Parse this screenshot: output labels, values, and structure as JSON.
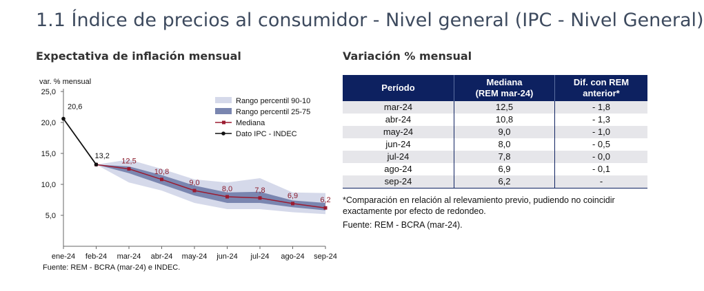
{
  "page": {
    "title": "1.1 Índice de precios al consumidor - Nivel general (IPC - Nivel General)"
  },
  "chart": {
    "title": "Expectativa de inflación mensual",
    "source": "Fuente: REM - BCRA (mar-24) e INDEC."
  },
  "chart_data": {
    "type": "line",
    "title": "Expectativa de inflación mensual",
    "ylabel": "var. % mensual",
    "xlabel": "",
    "categories": [
      "ene-24",
      "feb-24",
      "mar-24",
      "abr-24",
      "may-24",
      "jun-24",
      "jul-24",
      "ago-24",
      "sep-24"
    ],
    "ylim": [
      0,
      25
    ],
    "yticks": [
      "25,0",
      "20,0",
      "15,0",
      "10,0",
      "5,0"
    ],
    "yticks_values": [
      25,
      20,
      15,
      10,
      5
    ],
    "grid": false,
    "legend_position": "top-right",
    "series": [
      {
        "name": "Rango percentil 90-10",
        "kind": "band",
        "color": "#d5d9ea",
        "x": [
          "feb-24",
          "mar-24",
          "abr-24",
          "may-24",
          "jun-24",
          "jul-24",
          "ago-24",
          "sep-24"
        ],
        "low": [
          13.2,
          10.3,
          9.0,
          7.0,
          6.0,
          6.0,
          5.5,
          5.2
        ],
        "high": [
          13.2,
          14.0,
          12.5,
          10.8,
          10.3,
          11.0,
          8.7,
          8.6
        ]
      },
      {
        "name": "Rango percentil 25-75",
        "kind": "band",
        "color": "#7a86b0",
        "x": [
          "feb-24",
          "mar-24",
          "abr-24",
          "may-24",
          "jun-24",
          "jul-24",
          "ago-24",
          "sep-24"
        ],
        "low": [
          13.2,
          11.8,
          10.0,
          8.2,
          7.0,
          7.0,
          6.3,
          5.8
        ],
        "high": [
          13.2,
          12.9,
          11.5,
          9.8,
          8.7,
          8.8,
          7.4,
          7.0
        ]
      },
      {
        "name": "Mediana",
        "kind": "line",
        "color": "#9b1b30",
        "x": [
          "feb-24",
          "mar-24",
          "abr-24",
          "may-24",
          "jun-24",
          "jul-24",
          "ago-24",
          "sep-24"
        ],
        "values": [
          13.2,
          12.5,
          10.8,
          9.0,
          8.0,
          7.8,
          6.9,
          6.2
        ],
        "labels": [
          "12,5",
          "10,8",
          "9,0",
          "8,0",
          "7,8",
          "6,9",
          "6,2"
        ]
      },
      {
        "name": "Dato IPC - INDEC",
        "kind": "line",
        "color": "#111111",
        "x": [
          "ene-24",
          "feb-24"
        ],
        "values": [
          20.6,
          13.2
        ],
        "labels": [
          "20,6",
          "13,2"
        ]
      }
    ]
  },
  "table": {
    "title": "Variación % mensual",
    "headers": [
      "Período",
      "Mediana (REM mar-24)",
      "Dif. con REM anterior*"
    ],
    "header_lines": [
      [
        "Período"
      ],
      [
        "Mediana",
        "(REM mar-24)"
      ],
      [
        "Dif. con REM",
        "anterior*"
      ]
    ],
    "rows": [
      [
        "mar-24",
        "12,5",
        "- 1,8"
      ],
      [
        "abr-24",
        "10,8",
        "- 1,3"
      ],
      [
        "may-24",
        "9,0",
        "- 1,0"
      ],
      [
        "jun-24",
        "8,0",
        "- 0,5"
      ],
      [
        "jul-24",
        "7,8",
        "- 0,0"
      ],
      [
        "ago-24",
        "6,9",
        "- 0,1"
      ],
      [
        "sep-24",
        "6,2",
        "-"
      ]
    ],
    "note": "*Comparación en relación al relevamiento previo, pudiendo no coincidir exactamente por efecto de redondeo.",
    "source": "Fuente: REM - BCRA (mar-24).",
    "header_color": "#0d2160"
  }
}
